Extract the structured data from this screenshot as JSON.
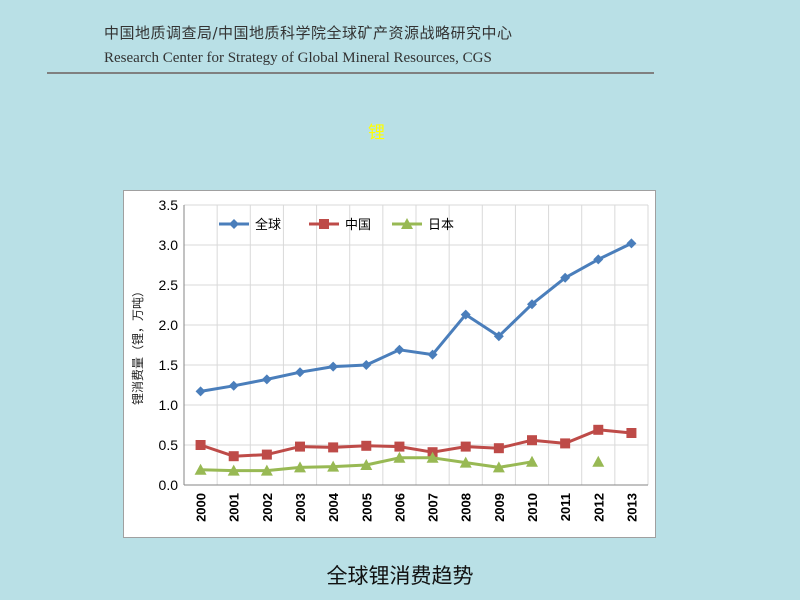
{
  "header": {
    "org_cn": "中国地质调查局/中国地质科学院全球矿产资源战略研究中心",
    "org_en": "Research Center for Strategy of Global Mineral Resources, CGS"
  },
  "element_title": "锂",
  "caption": "全球锂消费趋势",
  "colors": {
    "global": "#4a7ebb",
    "china": "#be4b48",
    "japan": "#98b954",
    "title_yellow": "#ffff00"
  },
  "chart_data": {
    "type": "line",
    "title": "",
    "xlabel": "",
    "ylabel": "锂消费量（锂，万吨）",
    "ylim": [
      0,
      3.5
    ],
    "yticks": [
      "0.0",
      "0.5",
      "1.0",
      "1.5",
      "2.0",
      "2.5",
      "3.0",
      "3.5"
    ],
    "grid": true,
    "legend_position": "top-left",
    "categories": [
      "2000",
      "2001",
      "2002",
      "2003",
      "2004",
      "2005",
      "2006",
      "2007",
      "2008",
      "2009",
      "2010",
      "2011",
      "2012",
      "2013"
    ],
    "series": [
      {
        "name": "全球",
        "marker": "diamond",
        "color": "#4a7ebb",
        "values": [
          1.17,
          1.24,
          1.32,
          1.41,
          1.48,
          1.5,
          1.69,
          1.63,
          2.13,
          1.86,
          2.26,
          2.59,
          2.82,
          3.02
        ]
      },
      {
        "name": "中国",
        "marker": "square",
        "color": "#be4b48",
        "values": [
          0.5,
          0.36,
          0.38,
          0.48,
          0.47,
          0.49,
          0.48,
          0.41,
          0.48,
          0.46,
          0.56,
          0.52,
          0.69,
          0.65
        ]
      },
      {
        "name": "日本",
        "marker": "triangle",
        "color": "#98b954",
        "values": [
          0.19,
          0.18,
          0.18,
          0.22,
          0.23,
          0.25,
          0.34,
          0.34,
          0.28,
          0.22,
          0.29,
          null,
          0.29,
          null
        ]
      }
    ]
  }
}
